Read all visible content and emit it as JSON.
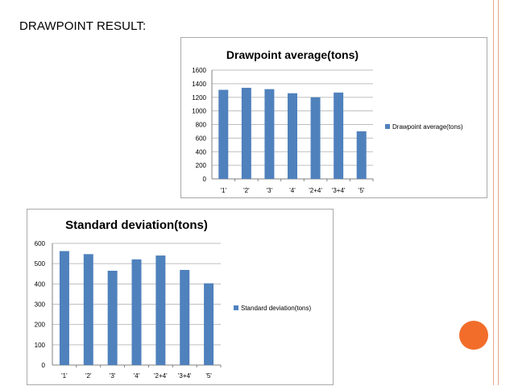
{
  "slide": {
    "heading": "DRAWPOINT RESULT:"
  },
  "colors": {
    "bar": "#4f81bd",
    "grid": "#bfbfbf",
    "accent_circle": "#f26d2a",
    "border_line": "#e8a890"
  },
  "chart_data": [
    {
      "type": "bar",
      "title": "Drawpoint average(tons)",
      "categories": [
        "'1'",
        "'2'",
        "'3'",
        "'4'",
        "'2+4'",
        "'3+4'",
        "'5'"
      ],
      "series": [
        {
          "name": "Drawpoint average(tons)",
          "values": [
            1310,
            1340,
            1320,
            1260,
            1200,
            1270,
            700
          ]
        }
      ],
      "ylim": [
        0,
        1600
      ],
      "yticks": [
        "0",
        "200",
        "400",
        "600",
        "800",
        "1000",
        "1200",
        "1400",
        "1600"
      ],
      "grid": true,
      "legend": "right"
    },
    {
      "type": "bar",
      "title": "Standard deviation(tons)",
      "categories": [
        "'1'",
        "'2'",
        "'3'",
        "'4'",
        "'2+4'",
        "'3+4'",
        "'5'"
      ],
      "series": [
        {
          "name": "Standard deviation(tons)",
          "values": [
            562,
            547,
            465,
            521,
            540,
            469,
            403
          ]
        }
      ],
      "ylim": [
        0,
        600
      ],
      "yticks": [
        "0",
        "100",
        "200",
        "300",
        "400",
        "500",
        "600"
      ],
      "grid": true,
      "legend": "right"
    }
  ]
}
